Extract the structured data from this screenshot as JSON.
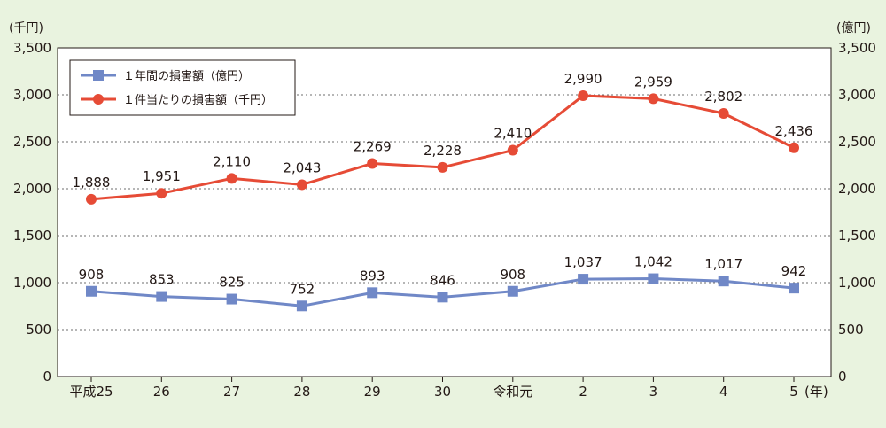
{
  "chart_data": {
    "type": "line",
    "categories": [
      "平成25",
      "26",
      "27",
      "28",
      "29",
      "30",
      "令和元",
      "2",
      "3",
      "4",
      "5"
    ],
    "x_unit": "(年)",
    "left_axis": {
      "unit": "(千円)",
      "ylim": [
        0,
        3500
      ],
      "ticks": [
        "0",
        "500",
        "1,000",
        "1,500",
        "2,000",
        "2,500",
        "3,000",
        "3,500"
      ]
    },
    "right_axis": {
      "unit": "(億円)",
      "ylim": [
        0,
        3500
      ],
      "ticks": [
        "0",
        "500",
        "1,000",
        "1,500",
        "2,000",
        "2,500",
        "3,000",
        "3,500"
      ]
    },
    "grid": "horizontal-dotted",
    "legend_position": "top-left",
    "series": [
      {
        "name": "１年間の損害額（億円）",
        "axis": "right",
        "marker": "square",
        "color": "#7088c7",
        "values": [
          908,
          853,
          825,
          752,
          893,
          846,
          908,
          1037,
          1042,
          1017,
          942
        ],
        "labels": [
          "908",
          "853",
          "825",
          "752",
          "893",
          "846",
          "908",
          "1,037",
          "1,042",
          "1,017",
          "942"
        ]
      },
      {
        "name": "１件当たりの損害額（千円）",
        "axis": "left",
        "marker": "circle",
        "color": "#e64b36",
        "values": [
          1888,
          1951,
          2110,
          2043,
          2269,
          2228,
          2410,
          2990,
          2959,
          2802,
          2436
        ],
        "labels": [
          "1,888",
          "1,951",
          "2,110",
          "2,043",
          "2,269",
          "2,228",
          "2,410",
          "2,990",
          "2,959",
          "2,802",
          "2,436"
        ]
      }
    ]
  }
}
